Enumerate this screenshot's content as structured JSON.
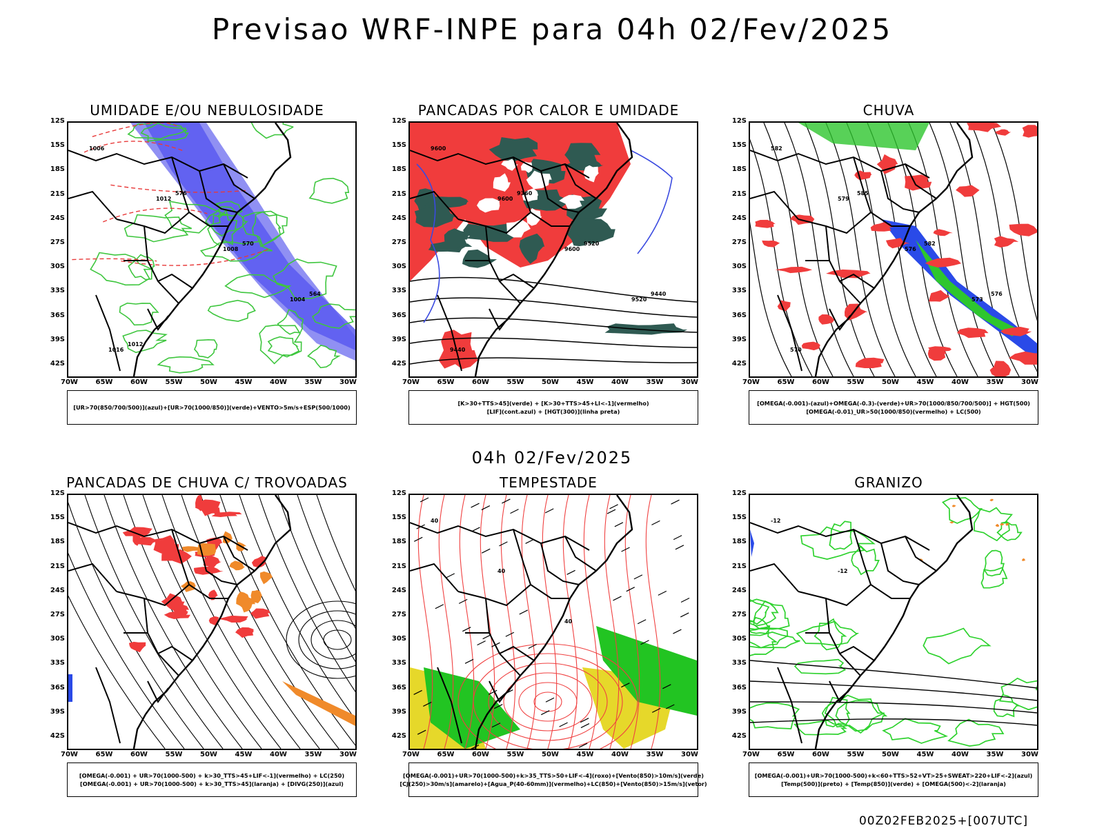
{
  "header": {
    "title": "Previsao WRF-INPE  para 04h 02/Fev/2025",
    "mid_date": "04h 02/Fev/2025",
    "run": "00Z02FEB2025+[007UTC]"
  },
  "axes": {
    "lat_ticks": [
      "12S",
      "15S",
      "18S",
      "21S",
      "24S",
      "27S",
      "30S",
      "33S",
      "36S",
      "39S",
      "42S"
    ],
    "lon_ticks": [
      "70W",
      "65W",
      "60W",
      "55W",
      "50W",
      "45W",
      "40W",
      "35W",
      "30W"
    ]
  },
  "panels": [
    {
      "title": "UMIDADE E/OU NEBULOSIDADE",
      "legend": [
        "[UR>70(850/700/500)](azul)+[UR>70(1000/850)](verde)+VENTO>5m/s+ESP(500/1000)"
      ],
      "colors": {
        "primary": "#5a5af0",
        "secondary": "#3ec63e",
        "accent": "#e83a3a"
      },
      "labels": [
        "1006",
        "1012",
        "1008",
        "1004",
        "1016",
        "576",
        "570",
        "564",
        "1012"
      ]
    },
    {
      "title": "PANCADAS POR CALOR E UMIDADE",
      "legend": [
        "[K>30+TTS>45](verde) + [K>30+TTS>45+LI<-1](vermelho)",
        "[LIF](cont.azul) + [HGT(300)](linha preta)"
      ],
      "colors": {
        "primary": "#f03c3c",
        "secondary": "#2f5a52",
        "accent": "#3a4ae0"
      },
      "labels": [
        "9600",
        "9600",
        "9600",
        "9520",
        "9440",
        "9360",
        "9520",
        "9440"
      ]
    },
    {
      "title": "CHUVA",
      "legend": [
        "[OMEGA(-0.001)-(azul)+OMEGA(-0.3)-(verde)+UR>70(1000/850/700/500)] + HGT(500)",
        "[OMEGA(-0.01)_UR>50(1000/850)(vermelho) + LC(500)"
      ],
      "colors": {
        "primary": "#f03c3c",
        "secondary": "#2a4ae8",
        "accent": "#2ec62e"
      },
      "labels": [
        "582",
        "579",
        "576",
        "573",
        "570",
        "585",
        "582",
        "576"
      ]
    },
    {
      "title": "PANCADAS DE CHUVA C/ TROVOADAS",
      "legend": [
        "[OMEGA(-0.001) + UR>70(1000-500) + k>30_TTS>45+LIF<-1](vermelho) + LC(250)",
        "[OMEGA(-0.001) + UR>70(1000-500) + k>30_TTS>45](laranja) + [DIVG(250)](azul)"
      ],
      "colors": {
        "primary": "#f03c3c",
        "secondary": "#f08a2a",
        "accent": "#2a4ae8"
      },
      "labels": []
    },
    {
      "title": "TEMPESTADE",
      "legend": [
        "[OMEGA(-0.001)+UR>70(1000-500)+k>35_TTS>50+LIF<-4](roxo)+[Vento(850)>10m/s](verde)",
        "[CJ(250)>30m/s](amarelo)+[Agua_P(40-60mm)](vermelho)+LC(850)+[Vento(850)>15m/s](vetor)"
      ],
      "colors": {
        "primary": "#f04040",
        "secondary": "#22c422",
        "accent": "#e6d82a"
      },
      "labels": [
        "40",
        "40",
        "40"
      ]
    },
    {
      "title": "GRANIZO",
      "legend": [
        "[OMEGA(-0.001)+UR>70(1000-500)+k<60+TTS>52+VT>25+SWEAT>220+LIF<-2](azul)",
        "[Temp(500)](preto) + [Temp(850)](verde) + [OMEGA(500)<-2](laranja)"
      ],
      "colors": {
        "primary": "#2ed22e",
        "secondary": "#f08a2a",
        "accent": "#2a4ae8"
      },
      "labels": [
        "-12",
        "-12"
      ]
    }
  ]
}
